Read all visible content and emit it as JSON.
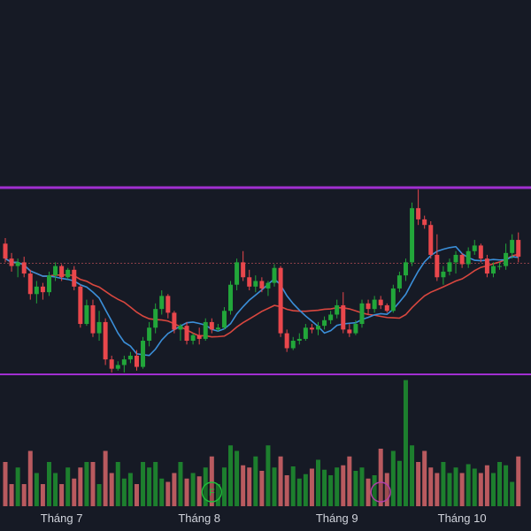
{
  "chart_data": {
    "type": "candlestick",
    "grid": false,
    "legend": "none",
    "colors": {
      "background": "#161a25",
      "up": "#22a63a",
      "down": "#e9474c",
      "up_volume": "#1d7f2e",
      "down_volume": "#b95a5f",
      "channel": "#a12fd1",
      "ma_fast": "#3b8fd9",
      "ma_slow": "#d9473f",
      "dotted_level": "#8a3f47",
      "axis_text": "#d1d4dc"
    },
    "x_ticks": [
      {
        "label": "Tháng 7",
        "index": 9
      },
      {
        "label": "Tháng 8",
        "index": 31
      },
      {
        "label": "Tháng 9",
        "index": 53
      },
      {
        "label": "Tháng 10",
        "index": 73
      }
    ],
    "channel_levels": [
      100,
      0
    ],
    "dotted_level": 59.5,
    "ohlc": [
      [
        70,
        73,
        60,
        62
      ],
      [
        62,
        65,
        55,
        58
      ],
      [
        58,
        62,
        52,
        60
      ],
      [
        60,
        63,
        52,
        54
      ],
      [
        54,
        56,
        40,
        43
      ],
      [
        43,
        50,
        38,
        47
      ],
      [
        47,
        49,
        40,
        44
      ],
      [
        44,
        55,
        42,
        53
      ],
      [
        53,
        60,
        50,
        58
      ],
      [
        58,
        59,
        50,
        52
      ],
      [
        52,
        57,
        51,
        56
      ],
      [
        56,
        58,
        45,
        47
      ],
      [
        47,
        48,
        25,
        27
      ],
      [
        27,
        40,
        26,
        37
      ],
      [
        37,
        40,
        20,
        22
      ],
      [
        22,
        34,
        18,
        28
      ],
      [
        28,
        30,
        5,
        8
      ],
      [
        8,
        10,
        1,
        3
      ],
      [
        3,
        7,
        2,
        5
      ],
      [
        5,
        10,
        1,
        8
      ],
      [
        8,
        12,
        6,
        10
      ],
      [
        10,
        13,
        2,
        4
      ],
      [
        4,
        20,
        3,
        18
      ],
      [
        18,
        28,
        15,
        25
      ],
      [
        25,
        38,
        22,
        35
      ],
      [
        35,
        45,
        32,
        42
      ],
      [
        42,
        43,
        30,
        33
      ],
      [
        33,
        34,
        22,
        24
      ],
      [
        24,
        27,
        18,
        26
      ],
      [
        26,
        28,
        16,
        18
      ],
      [
        18,
        22,
        16,
        21
      ],
      [
        21,
        25,
        16,
        19
      ],
      [
        19,
        30,
        18,
        28
      ],
      [
        28,
        30,
        22,
        24
      ],
      [
        24,
        27,
        23,
        25
      ],
      [
        25,
        36,
        24,
        34
      ],
      [
        34,
        50,
        32,
        48
      ],
      [
        48,
        62,
        45,
        60
      ],
      [
        60,
        66,
        50,
        52
      ],
      [
        52,
        56,
        45,
        47
      ],
      [
        47,
        53,
        44,
        50
      ],
      [
        50,
        52,
        44,
        46
      ],
      [
        46,
        50,
        42,
        49
      ],
      [
        49,
        59,
        47,
        57
      ],
      [
        57,
        58,
        20,
        22
      ],
      [
        22,
        24,
        12,
        14
      ],
      [
        14,
        20,
        13,
        18
      ],
      [
        18,
        22,
        16,
        19
      ],
      [
        19,
        27,
        18,
        25
      ],
      [
        25,
        27,
        22,
        24
      ],
      [
        24,
        28,
        21,
        26
      ],
      [
        26,
        31,
        24,
        29
      ],
      [
        29,
        34,
        27,
        32
      ],
      [
        32,
        40,
        30,
        37
      ],
      [
        37,
        44,
        22,
        24
      ],
      [
        24,
        27,
        20,
        22
      ],
      [
        22,
        29,
        21,
        27
      ],
      [
        27,
        40,
        25,
        38
      ],
      [
        38,
        40,
        32,
        35
      ],
      [
        35,
        42,
        33,
        40
      ],
      [
        40,
        42,
        35,
        37
      ],
      [
        37,
        38,
        33,
        34
      ],
      [
        34,
        48,
        33,
        46
      ],
      [
        46,
        55,
        44,
        53
      ],
      [
        53,
        62,
        50,
        60
      ],
      [
        60,
        92,
        58,
        89
      ],
      [
        89,
        99,
        80,
        83
      ],
      [
        83,
        85,
        78,
        80
      ],
      [
        80,
        82,
        62,
        64
      ],
      [
        64,
        75,
        50,
        52
      ],
      [
        52,
        58,
        48,
        55
      ],
      [
        55,
        62,
        53,
        60
      ],
      [
        60,
        66,
        54,
        64
      ],
      [
        64,
        65,
        57,
        59
      ],
      [
        59,
        68,
        57,
        66
      ],
      [
        66,
        72,
        64,
        69
      ],
      [
        69,
        70,
        60,
        62
      ],
      [
        62,
        64,
        52,
        54
      ],
      [
        54,
        60,
        52,
        58
      ],
      [
        58,
        60,
        56,
        58
      ],
      [
        58,
        70,
        56,
        65
      ],
      [
        65,
        75,
        62,
        72
      ],
      [
        72,
        76,
        60,
        63
      ]
    ],
    "volume": [
      4,
      2,
      3.5,
      2,
      5,
      3,
      2,
      4,
      3,
      2,
      3.5,
      2.5,
      3.5,
      4,
      4,
      2,
      5,
      3,
      4,
      2.5,
      3,
      2,
      4,
      3.5,
      4,
      2.5,
      2.2,
      3,
      4,
      2.5,
      3,
      2.7,
      3.5,
      4.5,
      2,
      3.5,
      5.5,
      5,
      3.7,
      3.5,
      4.5,
      3.2,
      5.5,
      3.5,
      4.5,
      2.8,
      3.6,
      2.5,
      2.9,
      3.4,
      4.2,
      3.3,
      2.8,
      3.5,
      3.7,
      4.5,
      3.2,
      3.5,
      2.5,
      2.8,
      5.2,
      3,
      5,
      4.1,
      11.4,
      5.5,
      4,
      5,
      3.5,
      3,
      4,
      3,
      3.5,
      3,
      3.8,
      3.4,
      3,
      3.7,
      3,
      4,
      3.7,
      2.2,
      4.5
    ],
    "events": [
      {
        "index": 33,
        "letter": "F",
        "color": "#1fbf3a"
      },
      {
        "index": 60,
        "letter": "",
        "color": "#b23fa8"
      }
    ]
  }
}
